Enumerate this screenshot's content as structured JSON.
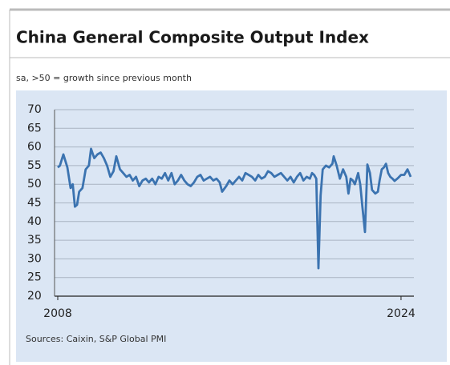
{
  "chart_data": {
    "type": "line",
    "title": "China General Composite Output Index",
    "subtitle": "sa, >50 = growth since previous month",
    "source": "Sources: Caixin, S&P Global PMI",
    "x": [
      2008.0,
      2008.1,
      2008.26,
      2008.45,
      2008.6,
      2008.7,
      2008.8,
      2008.9,
      2009.0,
      2009.15,
      2009.3,
      2009.45,
      2009.55,
      2009.7,
      2009.85,
      2010.0,
      2010.15,
      2010.3,
      2010.45,
      2010.6,
      2010.73,
      2010.9,
      2011.05,
      2011.2,
      2011.35,
      2011.5,
      2011.65,
      2011.8,
      2011.95,
      2012.1,
      2012.25,
      2012.4,
      2012.55,
      2012.7,
      2012.85,
      2013.0,
      2013.15,
      2013.3,
      2013.45,
      2013.6,
      2013.75,
      2013.9,
      2014.05,
      2014.2,
      2014.35,
      2014.5,
      2014.65,
      2014.8,
      2014.95,
      2015.1,
      2015.25,
      2015.4,
      2015.55,
      2015.66,
      2015.85,
      2016.0,
      2016.15,
      2016.3,
      2016.45,
      2016.6,
      2016.75,
      2016.9,
      2017.05,
      2017.2,
      2017.35,
      2017.5,
      2017.65,
      2017.8,
      2017.95,
      2018.1,
      2018.25,
      2018.4,
      2018.55,
      2018.7,
      2018.85,
      2019.0,
      2019.15,
      2019.3,
      2019.45,
      2019.6,
      2019.75,
      2019.85,
      2019.95,
      2020.05,
      2020.15,
      2020.25,
      2020.35,
      2020.5,
      2020.65,
      2020.8,
      2020.86,
      2021.0,
      2021.15,
      2021.3,
      2021.45,
      2021.55,
      2021.65,
      2021.75,
      2021.85,
      2022.0,
      2022.1,
      2022.2,
      2022.32,
      2022.43,
      2022.55,
      2022.65,
      2022.8,
      2022.92,
      2023.0,
      2023.1,
      2023.2,
      2023.3,
      2023.4,
      2023.5,
      2023.6,
      2023.7,
      2023.85,
      2024.0,
      2024.15,
      2024.3,
      2024.45
    ],
    "series": [
      {
        "name": "China General Composite Output Index",
        "color": "#3b73b0",
        "values": [
          54.5,
          55,
          58,
          54.5,
          49,
          50,
          44,
          44.5,
          48,
          49,
          54,
          55,
          59.5,
          57,
          58,
          58.5,
          57,
          55,
          52,
          53.5,
          57.5,
          54,
          53,
          52,
          52.5,
          51,
          52,
          49.5,
          51,
          51.5,
          50.5,
          51.5,
          50,
          52,
          51.5,
          53,
          51,
          53,
          50,
          51,
          52.5,
          51,
          50,
          49.5,
          50.5,
          52,
          52.5,
          51,
          51.5,
          52,
          51,
          51.5,
          50.5,
          48,
          49.5,
          51,
          50,
          51,
          52,
          51,
          53,
          52.5,
          52,
          51,
          52.5,
          51.5,
          52,
          53.5,
          53,
          52,
          52.5,
          53,
          52,
          51,
          52,
          50.5,
          52,
          53,
          51,
          52,
          51.5,
          53,
          52.5,
          51.5,
          27.5,
          47,
          54,
          55,
          54.5,
          55.5,
          57.5,
          55,
          51.5,
          54,
          52,
          47.5,
          51.5,
          51,
          50,
          53,
          50,
          43.9,
          37.2,
          55.3,
          53,
          48.5,
          47.5,
          48,
          51,
          54,
          54.5,
          55.5,
          53,
          52,
          51.5,
          50.9,
          51.6,
          52.5,
          52.5,
          54,
          52
        ]
      }
    ],
    "xlim": [
      2008,
      2024.6
    ],
    "xticks": [
      2008,
      2024
    ],
    "ylim": [
      20,
      70
    ],
    "yticks": [
      20,
      25,
      30,
      35,
      40,
      45,
      50,
      55,
      60,
      65,
      70
    ],
    "grid": true
  }
}
